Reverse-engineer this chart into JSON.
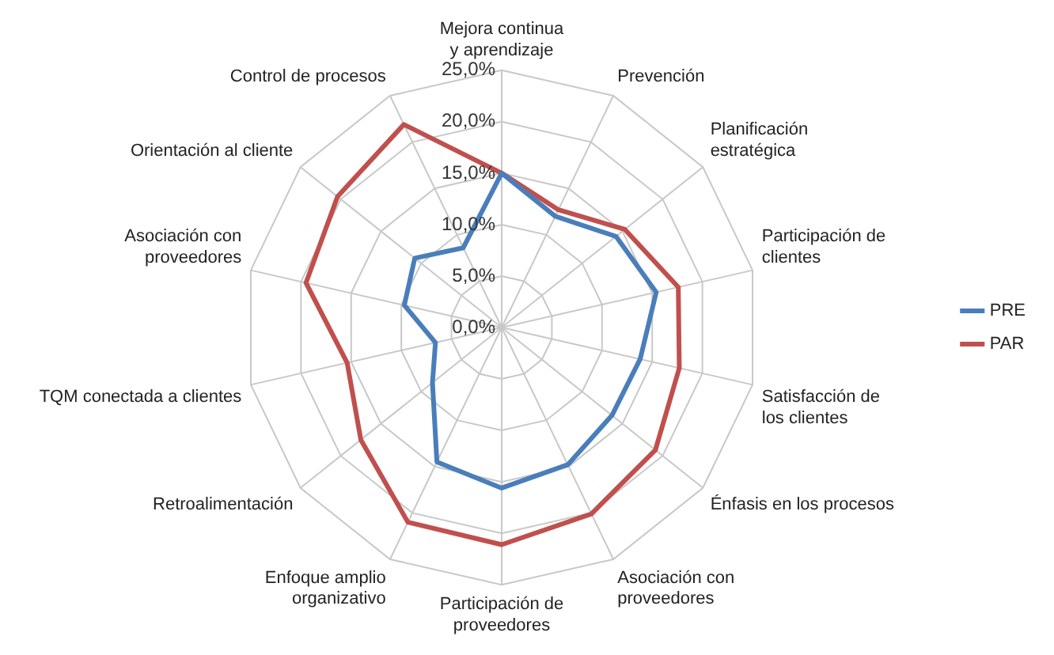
{
  "chart_data": {
    "type": "radar",
    "categories": [
      "Mejora continua y aprendizaje",
      "Prevención",
      "Planificación estratégica",
      "Participación de clientes",
      "Satisfacción de los clientes",
      "Énfasis en los procesos",
      "Asociación con proveedores",
      "Participación de proveedores",
      "Enfoque amplio organizativo",
      "Retroalimentación",
      "TQM conectada a clientes",
      "Asociación con proveedores",
      "Orientación al cliente",
      "Control de procesos"
    ],
    "series": [
      {
        "name": "PRE",
        "color": "#4a7ebb",
        "values": [
          15,
          12,
          14.2,
          15.4,
          13.8,
          13.7,
          14.8,
          15.6,
          14.5,
          8.6,
          6.6,
          9.7,
          10.8,
          8.6
        ]
      },
      {
        "name": "PAR",
        "color": "#c0504d",
        "values": [
          15,
          12.7,
          15.3,
          17.6,
          17.7,
          19.1,
          20.1,
          21.1,
          21,
          17.5,
          15.4,
          19.5,
          20.4,
          21.9
        ]
      }
    ],
    "ylim": [
      0,
      25
    ],
    "yticks": [
      {
        "value": 0,
        "label": "0,0%"
      },
      {
        "value": 5,
        "label": "5,0%"
      },
      {
        "value": 10,
        "label": "10,0%"
      },
      {
        "value": 15,
        "label": "15,0%"
      },
      {
        "value": 20,
        "label": "20,0%"
      },
      {
        "value": 25,
        "label": "25,0%"
      }
    ],
    "legend": "right",
    "marker": "none",
    "line_style": "solid",
    "grid": true
  }
}
